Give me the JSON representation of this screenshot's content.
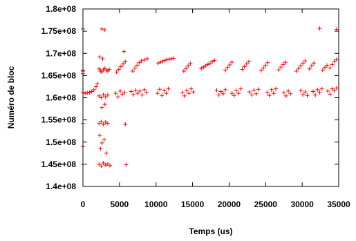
{
  "chart_data": {
    "type": "scatter",
    "xlabel": "Temps (us)",
    "ylabel": "Numéro de bloc",
    "xlim": [
      0,
      35000
    ],
    "ylim": [
      140000000,
      180000000
    ],
    "x_ticks": [
      0,
      5000,
      10000,
      15000,
      20000,
      25000,
      30000,
      35000
    ],
    "x_tick_labels": [
      "0",
      "5000",
      "10000",
      "15000",
      "20000",
      "25000",
      "30000",
      "35000"
    ],
    "y_ticks": [
      140000000,
      145000000,
      150000000,
      155000000,
      160000000,
      165000000,
      170000000,
      175000000,
      180000000
    ],
    "y_tick_labels": [
      "1.4e+08",
      "1.45e+08",
      "1.5e+08",
      "1.55e+08",
      "1.6e+08",
      "1.65e+08",
      "1.7e+08",
      "1.75e+08",
      "1.8e+08"
    ],
    "grid": false,
    "marker": "plus",
    "series_color": "#ff0000",
    "series": [
      {
        "points": [
          [
            0,
            166200000
          ],
          [
            0,
            166000000
          ],
          [
            0,
            165400000
          ],
          [
            0,
            161200000
          ],
          [
            0,
            154200000
          ],
          [
            0,
            149000000
          ],
          [
            0,
            145000000
          ],
          [
            0,
            175500000
          ],
          [
            300,
            161000000
          ],
          [
            600,
            161100000
          ],
          [
            900,
            161200000
          ],
          [
            1200,
            161400000
          ],
          [
            1500,
            161800000
          ],
          [
            1800,
            162500000
          ],
          [
            2000,
            163200000
          ],
          [
            2200,
            166500000
          ],
          [
            2400,
            166000000
          ],
          [
            2600,
            165800000
          ],
          [
            2800,
            166300000
          ],
          [
            3000,
            166600000
          ],
          [
            3200,
            166200000
          ],
          [
            3400,
            166000000
          ],
          [
            3600,
            166400000
          ],
          [
            2200,
            160400000
          ],
          [
            2500,
            160000000
          ],
          [
            2800,
            160700000
          ],
          [
            3100,
            160200000
          ],
          [
            3400,
            160600000
          ],
          [
            2200,
            154200000
          ],
          [
            2500,
            154600000
          ],
          [
            2800,
            154000000
          ],
          [
            3100,
            154500000
          ],
          [
            3400,
            154200000
          ],
          [
            2300,
            151500000
          ],
          [
            2600,
            149800000
          ],
          [
            2900,
            150500000
          ],
          [
            2400,
            148500000
          ],
          [
            3200,
            147500000
          ],
          [
            2200,
            145000000
          ],
          [
            2500,
            144600000
          ],
          [
            2800,
            145300000
          ],
          [
            3100,
            144800000
          ],
          [
            3400,
            145100000
          ],
          [
            3700,
            144700000
          ],
          [
            2300,
            169200000
          ],
          [
            2700,
            168800000
          ],
          [
            3000,
            158500000
          ],
          [
            2600,
            157800000
          ],
          [
            2600,
            175500000
          ],
          [
            3000,
            175300000
          ],
          [
            5600,
            170400000
          ],
          [
            5800,
            154000000
          ],
          [
            5900,
            144900000
          ],
          [
            4500,
            161000000
          ],
          [
            4800,
            160200000
          ],
          [
            5100,
            161500000
          ],
          [
            5400,
            160800000
          ],
          [
            5700,
            161200000
          ],
          [
            4600,
            165800000
          ],
          [
            4900,
            166400000
          ],
          [
            5200,
            167000000
          ],
          [
            5500,
            167600000
          ],
          [
            5800,
            168100000
          ],
          [
            6800,
            166000000
          ],
          [
            7100,
            166700000
          ],
          [
            7400,
            167300000
          ],
          [
            7700,
            167900000
          ],
          [
            8000,
            168300000
          ],
          [
            8400,
            168500000
          ],
          [
            8800,
            168800000
          ],
          [
            6600,
            161400000
          ],
          [
            6900,
            160700000
          ],
          [
            7200,
            161700000
          ],
          [
            7500,
            161000000
          ],
          [
            7800,
            161500000
          ],
          [
            8100,
            160600000
          ],
          [
            8400,
            161800000
          ],
          [
            8700,
            161200000
          ],
          [
            10300,
            167800000
          ],
          [
            10600,
            168000000
          ],
          [
            10900,
            168200000
          ],
          [
            11200,
            168400000
          ],
          [
            11500,
            168600000
          ],
          [
            11800,
            168700000
          ],
          [
            12100,
            168800000
          ],
          [
            12400,
            168900000
          ],
          [
            10200,
            161000000
          ],
          [
            10500,
            161900000
          ],
          [
            10800,
            160500000
          ],
          [
            11100,
            161600000
          ],
          [
            11400,
            161000000
          ],
          [
            11700,
            162000000
          ],
          [
            13800,
            166000000
          ],
          [
            14100,
            166600000
          ],
          [
            14400,
            167200000
          ],
          [
            14700,
            167700000
          ],
          [
            13600,
            161100000
          ],
          [
            13900,
            160400000
          ],
          [
            14200,
            161600000
          ],
          [
            14500,
            161000000
          ],
          [
            14800,
            162000000
          ],
          [
            15100,
            161300000
          ],
          [
            16200,
            166600000
          ],
          [
            16500,
            166900000
          ],
          [
            16800,
            167200000
          ],
          [
            17100,
            167500000
          ],
          [
            17400,
            167800000
          ],
          [
            17700,
            168100000
          ],
          [
            18000,
            168400000
          ],
          [
            18300,
            161700000
          ],
          [
            18600,
            160600000
          ],
          [
            18900,
            161400000
          ],
          [
            19200,
            160900000
          ],
          [
            19500,
            161800000
          ],
          [
            19500,
            166200000
          ],
          [
            19800,
            166800000
          ],
          [
            20100,
            167400000
          ],
          [
            20400,
            168000000
          ],
          [
            20400,
            161000000
          ],
          [
            20700,
            160500000
          ],
          [
            21000,
            161600000
          ],
          [
            21300,
            161000000
          ],
          [
            21600,
            162000000
          ],
          [
            21800,
            166400000
          ],
          [
            22100,
            167000000
          ],
          [
            22400,
            167600000
          ],
          [
            22700,
            168100000
          ],
          [
            22800,
            161300000
          ],
          [
            23100,
            160600000
          ],
          [
            23400,
            161700000
          ],
          [
            23700,
            160900000
          ],
          [
            24000,
            161900000
          ],
          [
            24400,
            166100000
          ],
          [
            24700,
            166700000
          ],
          [
            25000,
            167300000
          ],
          [
            25300,
            167900000
          ],
          [
            25200,
            161200000
          ],
          [
            25500,
            160500000
          ],
          [
            25800,
            161800000
          ],
          [
            26100,
            161000000
          ],
          [
            26400,
            162000000
          ],
          [
            26800,
            166300000
          ],
          [
            27100,
            166900000
          ],
          [
            27400,
            167500000
          ],
          [
            27700,
            168000000
          ],
          [
            27500,
            161100000
          ],
          [
            27800,
            160400000
          ],
          [
            28100,
            161500000
          ],
          [
            28400,
            160900000
          ],
          [
            29200,
            166000000
          ],
          [
            29500,
            166600000
          ],
          [
            29800,
            167200000
          ],
          [
            30100,
            167800000
          ],
          [
            30400,
            168300000
          ],
          [
            29800,
            161600000
          ],
          [
            30100,
            160700000
          ],
          [
            30400,
            161300000
          ],
          [
            30700,
            160500000
          ],
          [
            31000,
            166500000
          ],
          [
            31300,
            167200000
          ],
          [
            31600,
            167800000
          ],
          [
            31500,
            161400000
          ],
          [
            31800,
            160600000
          ],
          [
            32100,
            161800000
          ],
          [
            32400,
            161200000
          ],
          [
            32700,
            162000000
          ],
          [
            32800,
            166200000
          ],
          [
            33100,
            166800000
          ],
          [
            33400,
            167300000
          ],
          [
            33500,
            161500000
          ],
          [
            33800,
            160800000
          ],
          [
            34100,
            162000000
          ],
          [
            34400,
            161600000
          ],
          [
            34700,
            162200000
          ],
          [
            33800,
            166700000
          ],
          [
            34100,
            167500000
          ],
          [
            34400,
            168200000
          ],
          [
            34700,
            168600000
          ],
          [
            32400,
            175600000
          ],
          [
            34700,
            175400000
          ]
        ]
      }
    ]
  }
}
